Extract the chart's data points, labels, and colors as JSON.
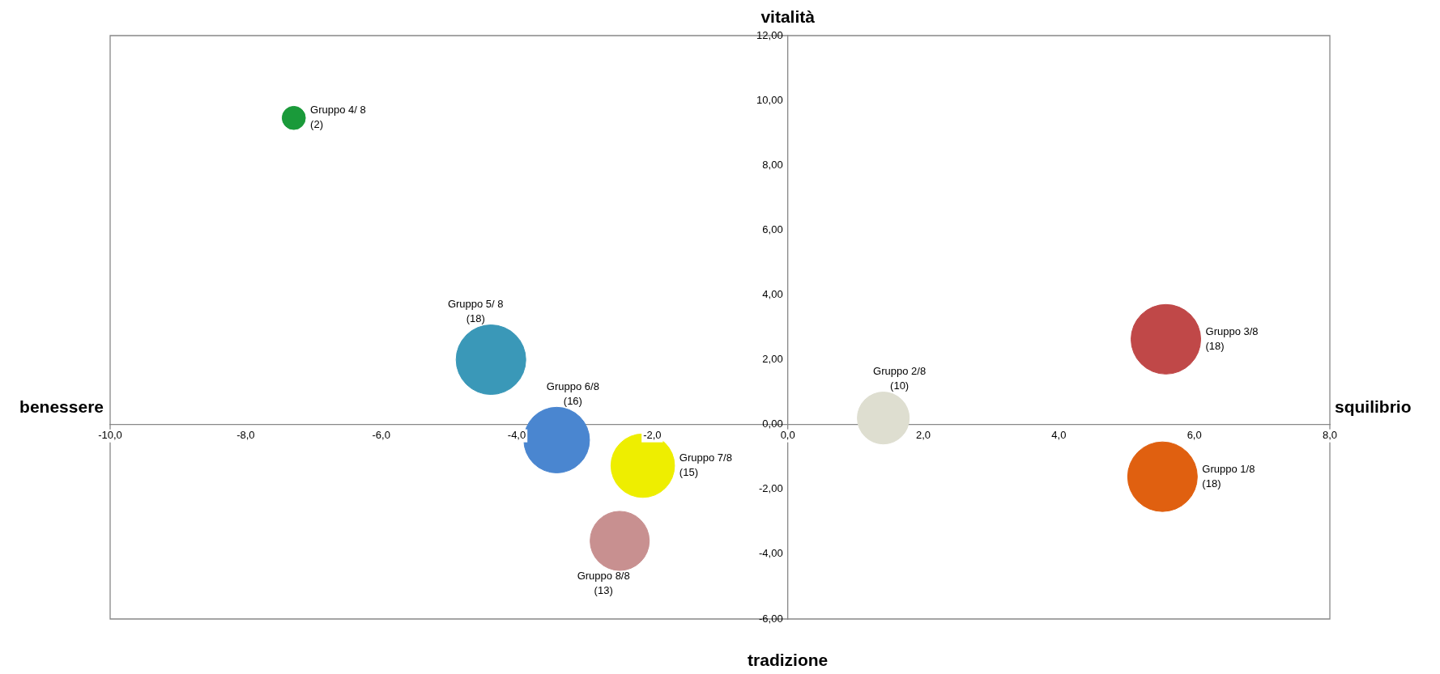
{
  "chart_data": {
    "type": "bubble",
    "xlim": [
      -10,
      8
    ],
    "ylim": [
      -6,
      12
    ],
    "xticks": [
      {
        "value": -10,
        "label": "-10,0"
      },
      {
        "value": -8,
        "label": "-8,0"
      },
      {
        "value": -6,
        "label": "-6,0"
      },
      {
        "value": -4,
        "label": "-4,0"
      },
      {
        "value": -2,
        "label": "-2,0"
      },
      {
        "value": 0,
        "label": "0,0"
      },
      {
        "value": 2,
        "label": "2,0"
      },
      {
        "value": 4,
        "label": "4,0"
      },
      {
        "value": 6,
        "label": "6,0"
      },
      {
        "value": 8,
        "label": "8,0"
      }
    ],
    "yticks": [
      {
        "value": -6,
        "label": "-6,00"
      },
      {
        "value": -4,
        "label": "-4,00"
      },
      {
        "value": -2,
        "label": "-2,00"
      },
      {
        "value": 0,
        "label": "0,00"
      },
      {
        "value": 2,
        "label": "2,00"
      },
      {
        "value": 4,
        "label": "4,00"
      },
      {
        "value": 6,
        "label": "6,00"
      },
      {
        "value": 8,
        "label": "8,00"
      },
      {
        "value": 10,
        "label": "10,00"
      },
      {
        "value": 12,
        "label": "12,00"
      }
    ],
    "grid": false,
    "legend": false,
    "annotations": [
      "vitalità",
      "benessere",
      "squilibrio",
      "tradizione"
    ],
    "series": [
      {
        "name": "Gruppo 4/ 8",
        "color": "#1a9a3a",
        "x": [
          -7.29
        ],
        "values": [
          9.46
        ],
        "sizes": [
          2
        ],
        "value_labels": [
          "(2)"
        ]
      },
      {
        "name": "Gruppo 5/ 8",
        "color": "#3a98b8",
        "x": [
          -4.38
        ],
        "values": [
          2.0
        ],
        "sizes": [
          18
        ],
        "value_labels": [
          "(18)"
        ]
      },
      {
        "name": "Gruppo 6/8",
        "color": "#4a86d0",
        "x": [
          -3.41
        ],
        "values": [
          -0.48
        ],
        "sizes": [
          16
        ],
        "value_labels": [
          "(16)"
        ]
      },
      {
        "name": "Gruppo 7/8",
        "color": "#eeee00",
        "x": [
          -2.14
        ],
        "values": [
          -1.27
        ],
        "sizes": [
          15
        ],
        "value_labels": [
          "(15)"
        ]
      },
      {
        "name": "Gruppo 8/8",
        "color": "#c89090",
        "x": [
          -2.48
        ],
        "values": [
          -3.59
        ],
        "sizes": [
          13
        ],
        "value_labels": [
          "(13)"
        ]
      },
      {
        "name": "Gruppo 2/8",
        "color": "#deded0",
        "x": [
          1.41
        ],
        "values": [
          0.2
        ],
        "sizes": [
          10
        ],
        "value_labels": [
          "(10)"
        ]
      },
      {
        "name": "Gruppo 3/8",
        "color": "#c04848",
        "x": [
          5.58
        ],
        "values": [
          2.63
        ],
        "sizes": [
          18
        ],
        "value_labels": [
          "(18)"
        ]
      },
      {
        "name": "Gruppo 1/8",
        "color": "#e06010",
        "x": [
          5.53
        ],
        "values": [
          -1.61
        ],
        "sizes": [
          18
        ],
        "value_labels": [
          "(18)"
        ]
      }
    ]
  }
}
